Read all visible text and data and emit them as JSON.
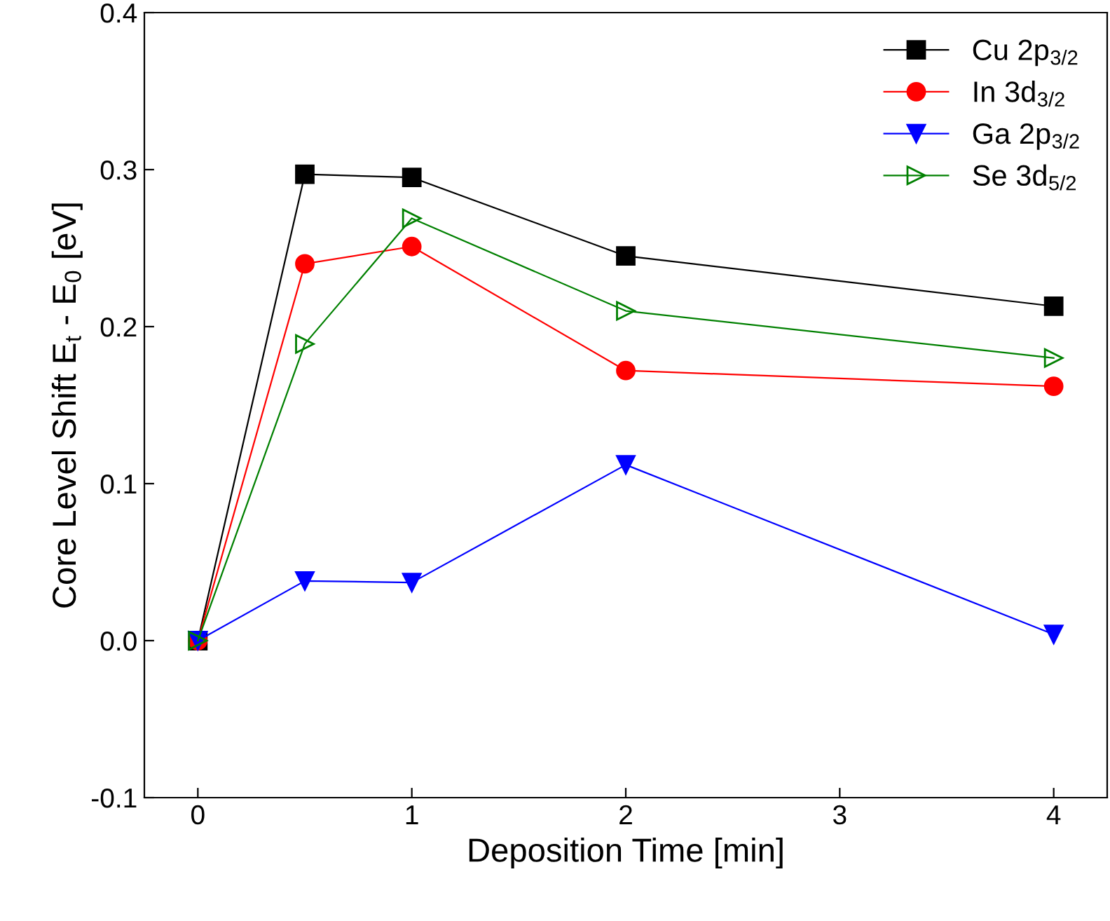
{
  "chart_data": {
    "type": "line",
    "xlabel": "Deposition Time [min]",
    "ylabel": "Core Level Shift E$_{t}$ - E$_{0}$ [eV]",
    "x": [
      0,
      0.5,
      1,
      2,
      4
    ],
    "series": [
      {
        "name": "Cu 2p$_{3/2}$",
        "color": "#000000",
        "values": [
          0,
          0.297,
          0.295,
          0.245,
          0.213
        ],
        "marker": "square"
      },
      {
        "name": "In 3d$_{3/2}$",
        "color": "#ff0000",
        "values": [
          0,
          0.24,
          0.251,
          0.172,
          0.162
        ],
        "marker": "circle"
      },
      {
        "name": "Ga 2p$_{3/2}$",
        "color": "#0000ff",
        "values": [
          0,
          0.038,
          0.037,
          0.112,
          0.004
        ],
        "marker": "triangle-down"
      },
      {
        "name": "Se 3d$_{5/2}$",
        "color": "#008000",
        "values": [
          0,
          0.189,
          0.269,
          0.21,
          0.18
        ],
        "marker": "triangle-right-open"
      }
    ],
    "xlim": [
      -0.25,
      4.25
    ],
    "xticks": [
      0,
      1,
      2,
      3,
      4
    ],
    "ylim": [
      -0.1,
      0.4
    ],
    "yticks": [
      {
        "value": -0.1,
        "label": "-0.1"
      },
      {
        "value": 0,
        "label": "0.0"
      },
      {
        "value": 0.1,
        "label": "0.1"
      },
      {
        "value": 0.2,
        "label": "0.2"
      },
      {
        "value": 0.3,
        "label": "0.3"
      },
      {
        "value": 0.4,
        "label": "0.4"
      }
    ],
    "legend": "top right",
    "grid": false,
    "line_style": "solid"
  }
}
